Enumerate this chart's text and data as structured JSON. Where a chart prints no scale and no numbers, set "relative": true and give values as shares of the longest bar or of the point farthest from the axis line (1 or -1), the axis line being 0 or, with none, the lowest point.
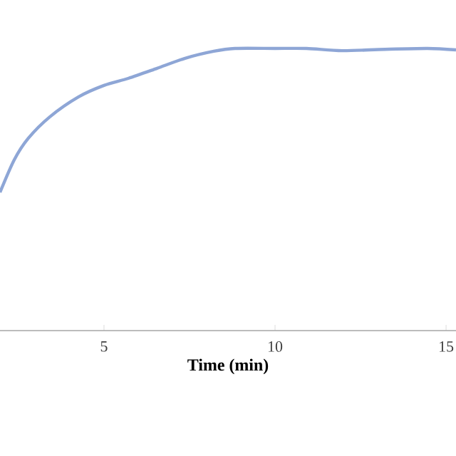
{
  "chart_data": {
    "type": "line",
    "relative": true,
    "xlabel": "Time (min)",
    "xlim": [
      1.96,
      15.29
    ],
    "xticks": [
      5,
      10,
      15
    ],
    "marker": "none",
    "line_style": "solid",
    "series": [
      {
        "color": "#8ea6d6",
        "x": [
          1.96,
          2.38,
          2.79,
          3.42,
          4.25,
          5,
          5.71,
          6.54,
          7.37,
          8.21,
          8.83,
          10,
          10.92,
          11.96,
          13.21,
          14.46,
          15.29
        ],
        "values": [
          0.49,
          0.606,
          0.682,
          0.758,
          0.828,
          0.869,
          0.894,
          0.929,
          0.965,
          0.99,
          1,
          1,
          1,
          0.992,
          0.997,
          1,
          0.995
        ]
      }
    ]
  }
}
